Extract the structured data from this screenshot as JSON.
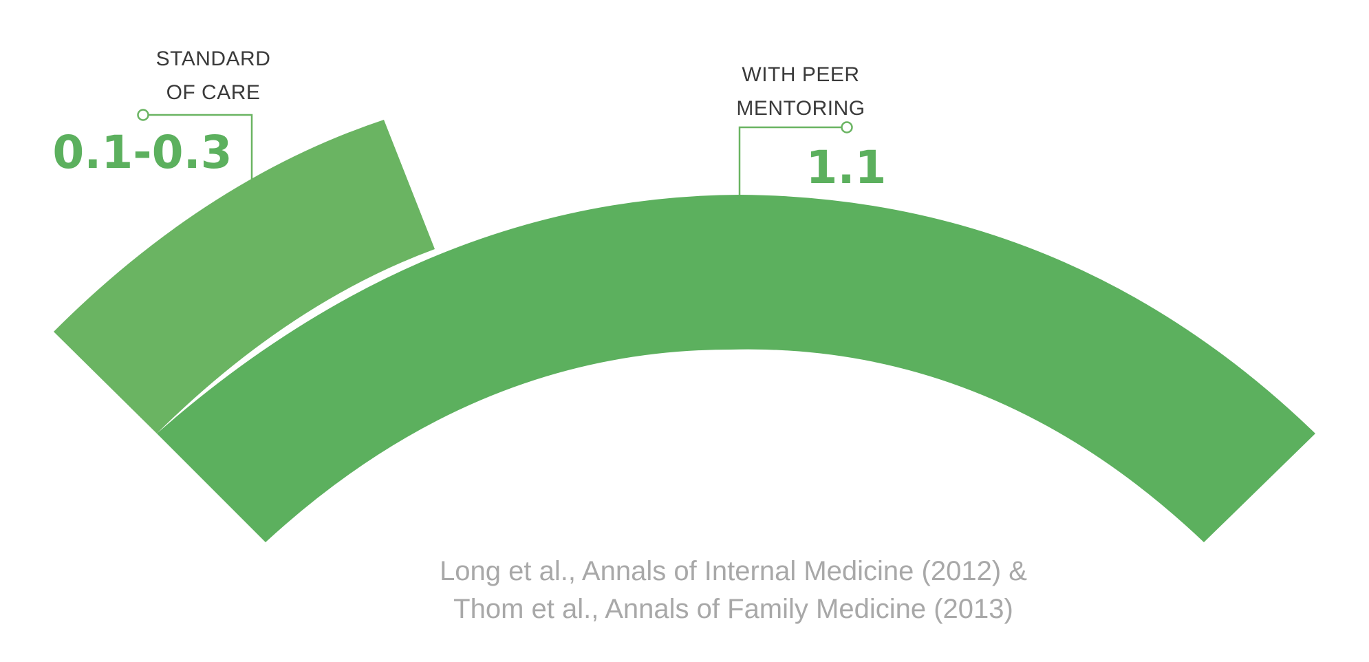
{
  "chart_data": {
    "type": "gauge",
    "title": "",
    "series": [
      {
        "name": "STANDARD OF CARE",
        "label_lines": [
          "STANDARD",
          "OF CARE"
        ],
        "value_text": "0.1-0.3",
        "value": 0.3,
        "color": "#6ab462"
      },
      {
        "name": "WITH PEER MENTORING",
        "label_lines": [
          "WITH PEER",
          "MENTORING"
        ],
        "value_text": "1.1",
        "value": 1.1,
        "color": "#5cb05e"
      }
    ]
  },
  "colors": {
    "callout_line": "#6ab462",
    "label_text": "#3a3a3a",
    "value_text": "#5cb05e",
    "source_text": "#a8a8a8"
  },
  "source": {
    "line1": "Long et al., Annals of Internal Medicine (2012) &",
    "line2": "Thom et al., Annals of Family Medicine (2013)"
  }
}
